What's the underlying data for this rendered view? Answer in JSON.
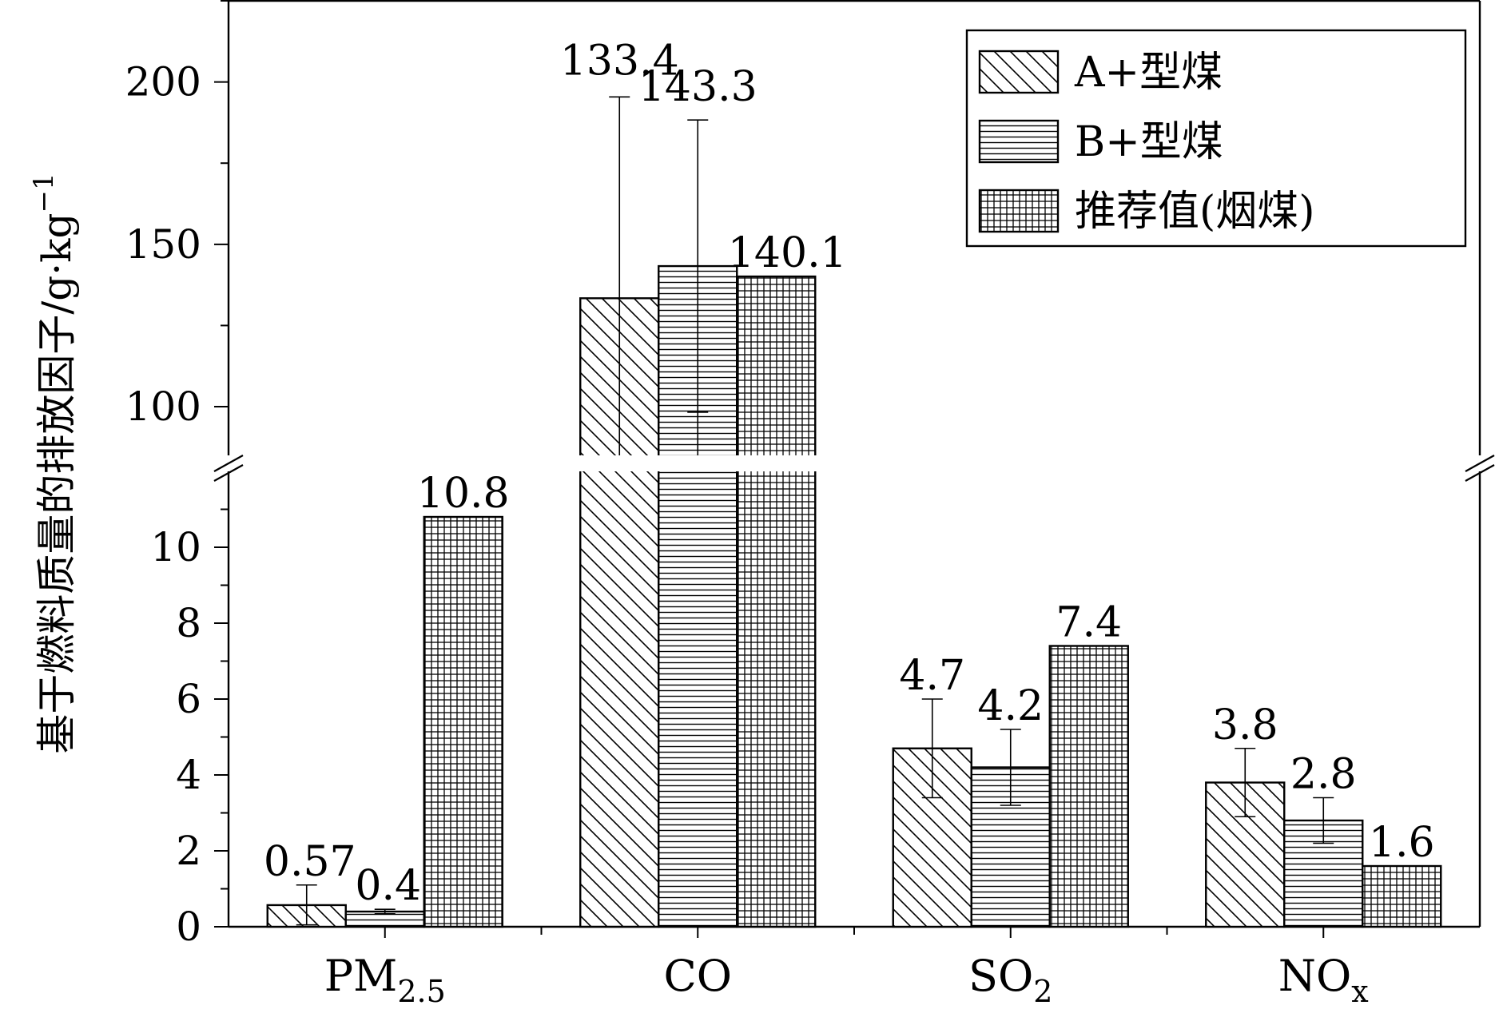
{
  "chart_data": {
    "type": "bar",
    "ylabel": "基于燃料质量的排放因子/g·kg",
    "ylabel_sup": "−1",
    "categories": [
      {
        "main": "PM",
        "sub": "2.5"
      },
      {
        "main": "CO",
        "sub": ""
      },
      {
        "main": "SO",
        "sub": "2"
      },
      {
        "main": "NO",
        "sub": "x"
      }
    ],
    "series": [
      {
        "name": "A+型煤",
        "pattern": "diagonal",
        "values": [
          0.57,
          133.4,
          4.7,
          3.8
        ],
        "labels": [
          "0.57",
          "133.4",
          "4.7",
          "3.8"
        ],
        "err_low": [
          0.05,
          133.4,
          3.4,
          2.9
        ],
        "err_high": [
          1.1,
          195.4,
          6.0,
          4.7
        ]
      },
      {
        "name": "B+型煤",
        "pattern": "horizontal",
        "values": [
          0.4,
          143.3,
          4.2,
          2.8
        ],
        "labels": [
          "0.4",
          "143.3",
          "4.2",
          "2.8"
        ],
        "err_low": [
          0.34,
          98.3,
          3.2,
          2.2
        ],
        "err_high": [
          0.46,
          188.3,
          5.2,
          3.4
        ]
      },
      {
        "name": "推荐值(烟煤)",
        "pattern": "grid",
        "values": [
          10.8,
          140.1,
          7.4,
          1.6
        ],
        "labels": [
          "10.8",
          "140.1",
          "7.4",
          "1.6"
        ],
        "err_low": [
          null,
          null,
          null,
          null
        ],
        "err_high": [
          null,
          null,
          null,
          null
        ]
      }
    ],
    "axis_break": true,
    "lower_ylim": [
      0,
      12
    ],
    "lower_ticks": [
      "0",
      "2",
      "4",
      "6",
      "8",
      "10"
    ],
    "upper_ylim": [
      85,
      225
    ],
    "upper_ticks": [
      "100",
      "150",
      "200"
    ],
    "legend_position": "top-right",
    "grid": false,
    "colors": {
      "axis": "#000000",
      "bar_fill": "#ffffff",
      "hatch": "#000000"
    }
  }
}
